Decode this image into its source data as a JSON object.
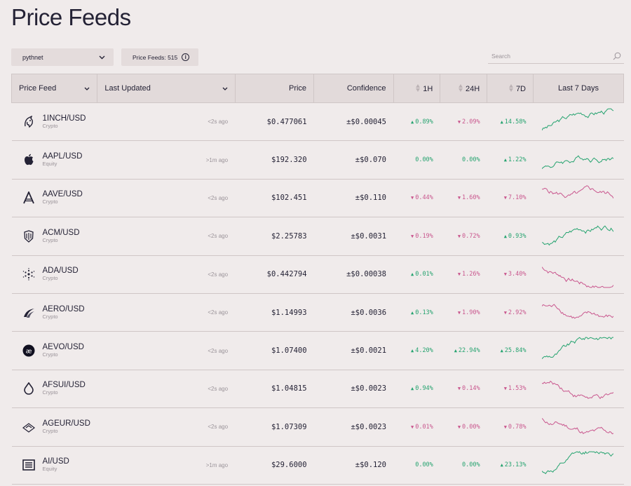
{
  "page": {
    "title": "Price Feeds"
  },
  "controls": {
    "network": "pythnet",
    "feed_count": "Price Feeds: 515",
    "search_placeholder": "Search"
  },
  "table": {
    "headers": {
      "feed": "Price Feed",
      "updated": "Last Updated",
      "price": "Price",
      "confidence": "Confidence",
      "h1": "1H",
      "h24": "24H",
      "d7": "7D",
      "last7": "Last 7 Days"
    },
    "rows": [
      {
        "pair": "1INCH/USD",
        "kind": "Crypto",
        "updated": "<2s ago",
        "price": "$0.477061",
        "conf": "±$0.00045",
        "h1": "0.89%",
        "h1_dir": "up",
        "h24": "2.09%",
        "h24_dir": "down",
        "d7": "14.58%",
        "d7_dir": "up",
        "trend": "up",
        "icon": "unicorn-icon"
      },
      {
        "pair": "AAPL/USD",
        "kind": "Equity",
        "updated": ">1m ago",
        "price": "$192.320",
        "conf": "±$0.070",
        "h1": "0.00%",
        "h1_dir": "flat",
        "h24": "0.00%",
        "h24_dir": "flat",
        "d7": "1.22%",
        "d7_dir": "up",
        "trend": "up",
        "icon": "apple-icon"
      },
      {
        "pair": "AAVE/USD",
        "kind": "Crypto",
        "updated": "<2s ago",
        "price": "$102.451",
        "conf": "±$0.110",
        "h1": "0.44%",
        "h1_dir": "down",
        "h24": "1.60%",
        "h24_dir": "down",
        "d7": "7.10%",
        "d7_dir": "down",
        "trend": "down",
        "icon": "aave-icon"
      },
      {
        "pair": "ACM/USD",
        "kind": "Crypto",
        "updated": "<2s ago",
        "price": "$2.25783",
        "conf": "±$0.0031",
        "h1": "0.19%",
        "h1_dir": "down",
        "h24": "0.72%",
        "h24_dir": "down",
        "d7": "0.93%",
        "d7_dir": "up",
        "trend": "up",
        "icon": "acm-crest-icon"
      },
      {
        "pair": "ADA/USD",
        "kind": "Crypto",
        "updated": "<2s ago",
        "price": "$0.442794",
        "conf": "±$0.00038",
        "h1": "0.01%",
        "h1_dir": "up",
        "h24": "1.26%",
        "h24_dir": "down",
        "d7": "3.40%",
        "d7_dir": "down",
        "trend": "down",
        "icon": "cardano-icon"
      },
      {
        "pair": "AERO/USD",
        "kind": "Crypto",
        "updated": "<2s ago",
        "price": "$1.14993",
        "conf": "±$0.0036",
        "h1": "0.13%",
        "h1_dir": "up",
        "h24": "1.90%",
        "h24_dir": "down",
        "d7": "2.92%",
        "d7_dir": "down",
        "trend": "down",
        "icon": "aero-wing-icon"
      },
      {
        "pair": "AEVO/USD",
        "kind": "Crypto",
        "updated": "<2s ago",
        "price": "$1.07400",
        "conf": "±$0.0021",
        "h1": "4.20%",
        "h1_dir": "up",
        "h24": "22.94%",
        "h24_dir": "up",
        "d7": "25.84%",
        "d7_dir": "up",
        "trend": "up",
        "icon": "aevo-icon"
      },
      {
        "pair": "AFSUI/USD",
        "kind": "Crypto",
        "updated": "<2s ago",
        "price": "$1.04815",
        "conf": "±$0.0023",
        "h1": "0.94%",
        "h1_dir": "up",
        "h24": "0.14%",
        "h24_dir": "down",
        "d7": "1.53%",
        "d7_dir": "down",
        "trend": "down",
        "icon": "droplet-icon"
      },
      {
        "pair": "AGEUR/USD",
        "kind": "Crypto",
        "updated": "<2s ago",
        "price": "$1.07309",
        "conf": "±$0.0023",
        "h1": "0.01%",
        "h1_dir": "down",
        "h24": "0.00%",
        "h24_dir": "down",
        "d7": "0.78%",
        "d7_dir": "down",
        "trend": "down",
        "icon": "angle-icon"
      },
      {
        "pair": "AI/USD",
        "kind": "Equity",
        "updated": ">1m ago",
        "price": "$29.6000",
        "conf": "±$0.120",
        "h1": "0.00%",
        "h1_dir": "flat",
        "h24": "0.00%",
        "h24_dir": "flat",
        "d7": "23.13%",
        "d7_dir": "up",
        "trend": "up",
        "icon": "c3ai-icon"
      }
    ]
  },
  "colors": {
    "up": "#25a36f",
    "down": "#c9578e",
    "bg": "#f0ebeb",
    "header_bg": "#e2dada"
  }
}
